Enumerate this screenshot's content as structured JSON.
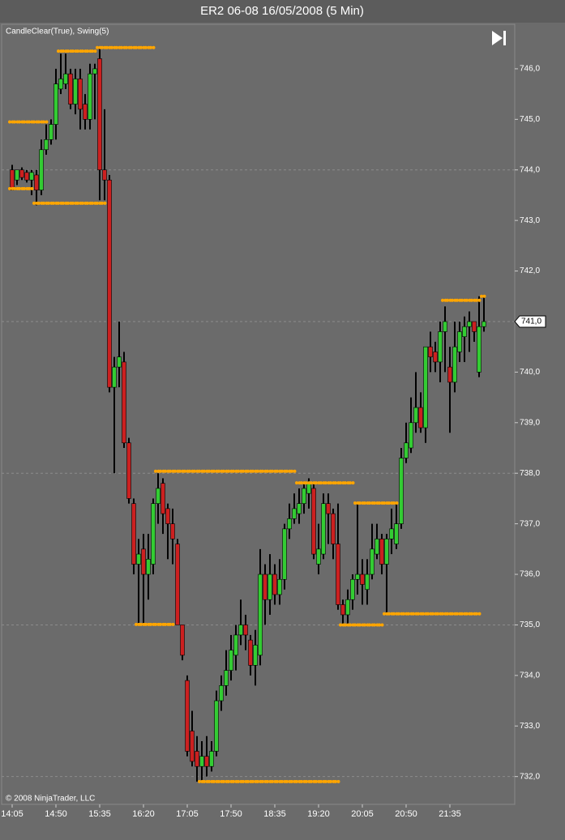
{
  "chart_data": {
    "type": "candlestick",
    "title": "ER2 06-08  16/05/2008 (5 Min)",
    "indicator_label": "CandleClear(True), Swing(5)",
    "copyright": "© 2008 NinjaTrader, LLC",
    "up_color": "#33cc33",
    "down_color": "#cc2020",
    "wick_color": "#000000",
    "swing_color": "#ffa500",
    "background": "#6b6b6b",
    "categories": [
      "14:05",
      null,
      null,
      null,
      null,
      null,
      null,
      null,
      null,
      "14:50",
      null,
      null,
      null,
      null,
      null,
      null,
      null,
      null,
      "15:35",
      null,
      null,
      null,
      null,
      null,
      null,
      null,
      null,
      "16:20",
      null,
      null,
      null,
      null,
      null,
      null,
      null,
      null,
      "17:05",
      null,
      null,
      null,
      null,
      null,
      null,
      null,
      null,
      "17:50",
      null,
      null,
      null,
      null,
      null,
      null,
      null,
      null,
      "18:35",
      null,
      null,
      null,
      null,
      null,
      null,
      null,
      null,
      "19:20",
      null,
      null,
      null,
      null,
      null,
      null,
      null,
      null,
      "20:05",
      null,
      null,
      null,
      null,
      null,
      null,
      null,
      null,
      "20:50",
      null,
      null,
      null,
      null,
      null,
      null,
      null,
      null,
      "21:35",
      null,
      null,
      null,
      null,
      null,
      null,
      null
    ],
    "open": [
      744.0,
      743.8,
      744.0,
      743.95,
      743.8,
      743.9,
      743.6,
      744.4,
      744.6,
      744.9,
      745.6,
      745.7,
      745.9,
      745.3,
      745.8,
      745.3,
      745.0,
      745.9,
      746.2,
      744.0,
      743.8,
      739.7,
      740.1,
      740.2,
      738.6,
      737.4,
      736.2,
      736.5,
      736.0,
      736.2,
      737.4,
      737.8,
      737.3,
      737.0,
      736.6,
      735.0,
      733.9,
      732.9,
      732.5,
      732.2,
      732.4,
      732.2,
      732.5,
      733.5,
      733.8,
      734.1,
      734.4,
      734.8,
      735.0,
      734.7,
      734.2,
      734.4,
      736.0,
      735.5,
      736.0,
      735.6,
      735.9,
      736.9,
      737.1,
      737.2,
      737.4,
      737.6,
      737.7,
      736.2,
      736.4,
      737.4,
      737.2,
      736.6,
      735.4,
      735.2,
      735.5,
      735.9,
      736.0,
      735.7,
      736.0,
      736.4,
      736.7,
      736.2,
      736.7,
      736.6,
      737.0,
      738.3,
      738.5,
      739.0,
      739.3,
      738.9,
      740.5,
      740.4,
      740.2,
      740.8,
      740.1,
      739.8,
      740.4,
      740.7,
      740.9,
      741.0,
      740.0,
      740.9
    ],
    "high": [
      744.1,
      744.0,
      744.05,
      744.0,
      744.0,
      744.0,
      744.6,
      744.9,
      745.0,
      746.0,
      746.3,
      746.3,
      746.0,
      746.0,
      746.0,
      745.5,
      746.1,
      746.1,
      746.4,
      745.2,
      743.9,
      740.3,
      741.0,
      740.4,
      738.7,
      737.5,
      736.7,
      736.8,
      736.8,
      737.5,
      738.0,
      737.9,
      737.4,
      737.3,
      736.7,
      735.0,
      734.0,
      733.3,
      732.8,
      732.7,
      732.8,
      732.7,
      733.7,
      734.0,
      734.5,
      734.8,
      735.0,
      735.5,
      735.2,
      734.8,
      734.9,
      736.5,
      736.2,
      736.4,
      736.2,
      736.3,
      737.0,
      737.4,
      737.6,
      737.7,
      737.8,
      737.9,
      737.8,
      737.0,
      737.6,
      737.6,
      737.3,
      737.4,
      735.5,
      735.7,
      736.0,
      737.4,
      736.3,
      736.3,
      737.0,
      737.0,
      736.8,
      736.8,
      737.3,
      737.4,
      738.5,
      739.0,
      739.5,
      740.0,
      739.6,
      740.5,
      740.8,
      740.6,
      741.0,
      741.3,
      740.5,
      741.0,
      741.0,
      741.1,
      741.2,
      741.0,
      741.5,
      741.5
    ],
    "low": [
      743.6,
      743.7,
      743.8,
      743.75,
      743.5,
      743.3,
      743.5,
      744.3,
      744.5,
      744.6,
      745.5,
      745.6,
      745.2,
      745.1,
      744.8,
      744.8,
      744.8,
      745.0,
      743.4,
      743.4,
      739.6,
      738.0,
      739.7,
      738.5,
      737.4,
      736.0,
      735.0,
      735.0,
      735.5,
      736.0,
      737.0,
      736.8,
      736.3,
      736.2,
      735.0,
      734.3,
      732.4,
      732.2,
      731.9,
      731.9,
      732.0,
      732.1,
      732.4,
      733.3,
      733.6,
      733.9,
      734.1,
      734.6,
      734.5,
      734.0,
      733.8,
      734.2,
      735.0,
      735.2,
      735.4,
      735.4,
      735.7,
      736.7,
      737.0,
      737.0,
      737.2,
      737.3,
      736.3,
      736.0,
      736.3,
      736.6,
      736.3,
      735.3,
      735.0,
      735.0,
      735.3,
      735.6,
      735.4,
      735.4,
      735.9,
      736.3,
      736.0,
      735.2,
      736.4,
      736.5,
      736.9,
      738.2,
      738.4,
      738.8,
      738.8,
      738.6,
      740.0,
      740.0,
      739.8,
      740.0,
      738.8,
      739.6,
      740.2,
      740.2,
      740.4,
      740.6,
      739.9,
      740.8
    ],
    "close": [
      743.6,
      744.0,
      743.85,
      743.8,
      743.95,
      743.6,
      744.4,
      744.6,
      744.9,
      745.7,
      745.8,
      745.9,
      745.3,
      745.8,
      745.2,
      745.0,
      745.9,
      746.0,
      744.0,
      743.8,
      739.7,
      740.1,
      740.3,
      738.6,
      737.5,
      736.2,
      736.4,
      736.0,
      736.3,
      737.4,
      737.7,
      737.2,
      737.0,
      736.7,
      735.0,
      734.4,
      732.5,
      732.3,
      732.2,
      732.4,
      732.2,
      732.5,
      733.5,
      733.8,
      734.1,
      734.5,
      734.8,
      735.0,
      734.8,
      734.2,
      734.6,
      736.0,
      735.5,
      736.0,
      735.6,
      735.9,
      736.9,
      737.1,
      737.3,
      737.4,
      737.7,
      737.8,
      736.4,
      736.5,
      737.4,
      737.2,
      736.6,
      735.4,
      735.2,
      735.5,
      735.9,
      736.0,
      735.8,
      736.0,
      736.5,
      736.7,
      736.2,
      736.7,
      736.9,
      737.0,
      738.3,
      738.6,
      739.0,
      739.3,
      738.9,
      740.5,
      740.3,
      740.2,
      740.8,
      741.0,
      739.8,
      740.5,
      740.8,
      740.9,
      741.0,
      740.8,
      740.9,
      741.0
    ],
    "swing_high": [
      744.95,
      744.95,
      744.95,
      744.95,
      744.95,
      744.95,
      744.95,
      744.95,
      null,
      null,
      746.35,
      746.35,
      746.35,
      746.35,
      746.35,
      746.35,
      746.35,
      746.35,
      746.42,
      746.42,
      746.42,
      746.42,
      746.42,
      746.42,
      746.42,
      746.42,
      746.42,
      746.42,
      746.42,
      746.42,
      738.04,
      738.04,
      738.04,
      738.04,
      738.04,
      738.04,
      738.04,
      738.04,
      738.04,
      738.04,
      738.04,
      738.04,
      738.04,
      738.04,
      738.04,
      738.04,
      738.04,
      738.04,
      738.04,
      738.04,
      738.04,
      738.04,
      738.04,
      738.04,
      738.04,
      738.04,
      738.04,
      738.04,
      738.04,
      737.81,
      737.81,
      737.81,
      737.81,
      737.81,
      737.81,
      737.81,
      737.81,
      737.81,
      737.81,
      737.81,
      737.81,
      737.41,
      737.41,
      737.41,
      737.41,
      737.41,
      737.41,
      737.41,
      737.41,
      737.41,
      null,
      null,
      null,
      null,
      null,
      null,
      null,
      null,
      null,
      741.42,
      741.42,
      741.42,
      741.42,
      741.42,
      741.42,
      741.42,
      741.42,
      741.5
    ],
    "swing_low": [
      743.63,
      743.63,
      743.63,
      743.63,
      743.63,
      743.34,
      743.34,
      743.34,
      743.34,
      743.34,
      743.34,
      743.34,
      743.34,
      743.34,
      743.34,
      743.34,
      743.34,
      743.34,
      743.34,
      743.34,
      null,
      null,
      null,
      null,
      null,
      null,
      735.01,
      735.01,
      735.01,
      735.01,
      735.01,
      735.01,
      735.01,
      735.01,
      null,
      null,
      null,
      null,
      null,
      731.9,
      731.9,
      731.9,
      731.9,
      731.9,
      731.9,
      731.9,
      731.9,
      731.9,
      731.9,
      731.9,
      731.9,
      731.9,
      731.9,
      731.9,
      731.9,
      731.9,
      731.9,
      731.9,
      731.9,
      731.9,
      731.9,
      731.9,
      731.9,
      731.9,
      731.9,
      731.9,
      731.9,
      731.9,
      735.0,
      735.0,
      735.0,
      735.0,
      735.0,
      735.0,
      735.0,
      735.0,
      735.0,
      735.22,
      735.22,
      735.22,
      735.22,
      735.22,
      735.22,
      735.22,
      735.22,
      735.22,
      735.22,
      735.22,
      735.22,
      735.22,
      735.22,
      735.22,
      735.22,
      735.22,
      735.22,
      735.22,
      735.22,
      null
    ],
    "ylim": [
      731.45,
      746.88
    ],
    "yticks": [
      {
        "value": 732,
        "label": "732,0"
      },
      {
        "value": 733,
        "label": "733,0"
      },
      {
        "value": 734,
        "label": "734,0"
      },
      {
        "value": 735,
        "label": "735,0"
      },
      {
        "value": 736,
        "label": "736,0"
      },
      {
        "value": 737,
        "label": "737,0"
      },
      {
        "value": 738,
        "label": "738,0"
      },
      {
        "value": 739,
        "label": "739,0"
      },
      {
        "value": 740,
        "label": "740,0"
      },
      {
        "value": 741,
        "label": "741,0"
      },
      {
        "value": 742,
        "label": "742,0"
      },
      {
        "value": 743,
        "label": "743,0"
      },
      {
        "value": 744,
        "label": "744,0"
      },
      {
        "value": 745,
        "label": "745,0"
      },
      {
        "value": 746,
        "label": "746,0"
      }
    ],
    "ygrid": [
      732,
      735,
      738,
      741,
      744
    ],
    "last_price": {
      "value": 741.0,
      "label": "741,0"
    }
  }
}
